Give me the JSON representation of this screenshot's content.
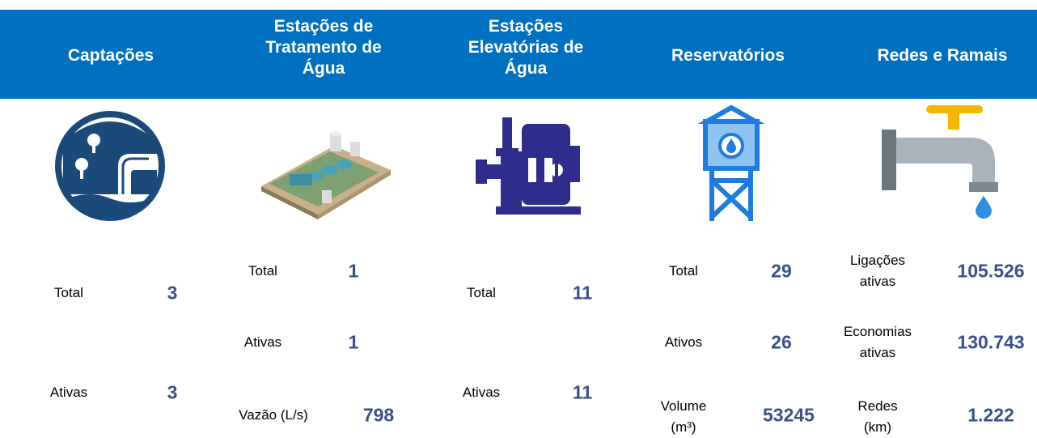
{
  "columns": [
    {
      "title": "Captações",
      "stats": [
        {
          "label": "Total",
          "value": "3"
        },
        {
          "label": "Ativas",
          "value": "3"
        }
      ]
    },
    {
      "title": "Estações de Tratamento de Água",
      "stats": [
        {
          "label": "Total",
          "value": "1"
        },
        {
          "label": "Ativas",
          "value": "1"
        },
        {
          "label": "Vazão (L/s)",
          "value": "798"
        }
      ]
    },
    {
      "title": "Estações Elevatórias de Água",
      "stats": [
        {
          "label": "Total",
          "value": "11"
        },
        {
          "label": "Ativas",
          "value": "11"
        }
      ]
    },
    {
      "title": "Reservatórios",
      "stats": [
        {
          "label": "Total",
          "value": "29"
        },
        {
          "label": "Ativos",
          "value": "26"
        },
        {
          "label": "Volume (m³)",
          "value": "53245"
        }
      ]
    },
    {
      "title": "Redes e Ramais",
      "stats": [
        {
          "label": "Ligações ativas",
          "value": "105.526"
        },
        {
          "label": "Economias ativas",
          "value": "130.743"
        },
        {
          "label": "Redes (km)",
          "value": "1.222"
        }
      ]
    }
  ]
}
